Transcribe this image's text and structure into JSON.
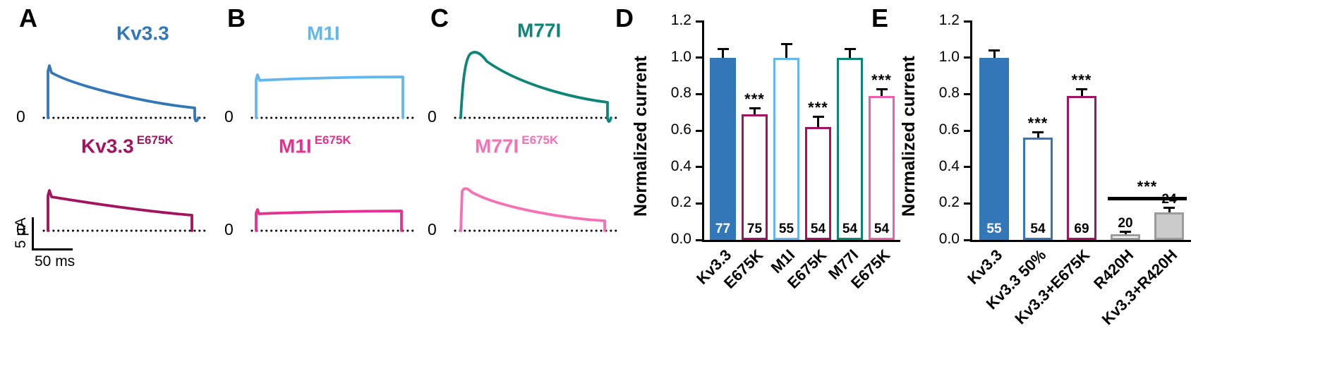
{
  "panels": {
    "A": {
      "label": "A",
      "zero": "0",
      "top": {
        "name": "Kv3.3",
        "color": "#3377b8"
      },
      "bottom": {
        "name": "Kv3.3",
        "sup": "E675K",
        "color": "#a4135f"
      },
      "scale_v": "5 µA",
      "scale_h": "50 ms"
    },
    "B": {
      "label": "B",
      "zero": "0",
      "top": {
        "name": "M1I",
        "color": "#62b7ee"
      },
      "bottom": {
        "name": "M1I",
        "sup": "E675K",
        "color": "#e62f8e"
      }
    },
    "C": {
      "label": "C",
      "zero": "0",
      "top": {
        "name": "M77I",
        "color": "#0d8678"
      },
      "bottom": {
        "name": "M77I",
        "sup": "E675K",
        "color": "#f76fb4"
      }
    },
    "D": {
      "label": "D"
    },
    "E": {
      "label": "E"
    }
  },
  "chart_data": [
    {
      "panel": "D",
      "type": "bar",
      "title": "",
      "xlabel": "",
      "ylabel": "Normalized current",
      "ylim": [
        0,
        1.2
      ],
      "yticks": [
        0,
        0.2,
        0.4,
        0.6,
        0.8,
        1.0,
        1.2
      ],
      "grid": false,
      "categories": [
        "Kv3.3",
        "E675K",
        "M1I",
        "E675K",
        "M77I",
        "E675K"
      ],
      "values": [
        1.0,
        0.69,
        1.0,
        0.62,
        1.0,
        0.79
      ],
      "errors": [
        0.04,
        0.025,
        0.07,
        0.05,
        0.04,
        0.03
      ],
      "n": [
        77,
        75,
        55,
        54,
        54,
        54
      ],
      "sig": [
        "",
        "***",
        "",
        "***",
        "",
        "***"
      ],
      "bar_fill": [
        "#3377b8",
        "#ffffff",
        "#ffffff",
        "#ffffff",
        "#ffffff",
        "#ffffff"
      ],
      "bar_border": [
        "#3377b8",
        "#a4135f",
        "#62b7ee",
        "#a4135f",
        "#0d8678",
        "#ee5fa9"
      ],
      "n_color": [
        "#ffffff",
        "#000000",
        "#000000",
        "#000000",
        "#000000",
        "#000000"
      ]
    },
    {
      "panel": "E",
      "type": "bar",
      "title": "",
      "xlabel": "",
      "ylabel": "Normalized current",
      "ylim": [
        0,
        1.2
      ],
      "yticks": [
        0,
        0.2,
        0.4,
        0.6,
        0.8,
        1.0,
        1.2
      ],
      "grid": false,
      "categories": [
        "Kv3.3",
        "Kv3.3 50%",
        "Kv3.3+E675K",
        "R420H",
        "Kv3.3+R420H"
      ],
      "values": [
        1.0,
        0.56,
        0.79,
        0.03,
        0.15
      ],
      "errors": [
        0.035,
        0.025,
        0.03,
        0.01,
        0.02
      ],
      "n": [
        55,
        54,
        69,
        20,
        24
      ],
      "sig": [
        "",
        "***",
        "***",
        "",
        ""
      ],
      "bracket": {
        "from": 3,
        "to": 4,
        "y": 0.215,
        "label": "***"
      },
      "bar_fill": [
        "#3377b8",
        "#ffffff",
        "#ffffff",
        "#ffffff",
        "#cbcbcb"
      ],
      "bar_border": [
        "#3377b8",
        "#3377b8",
        "#a4135f",
        "#9c9c9c",
        "#9c9c9c"
      ],
      "n_color": [
        "#ffffff",
        "#000000",
        "#000000",
        "#000000",
        "#000000"
      ]
    }
  ]
}
